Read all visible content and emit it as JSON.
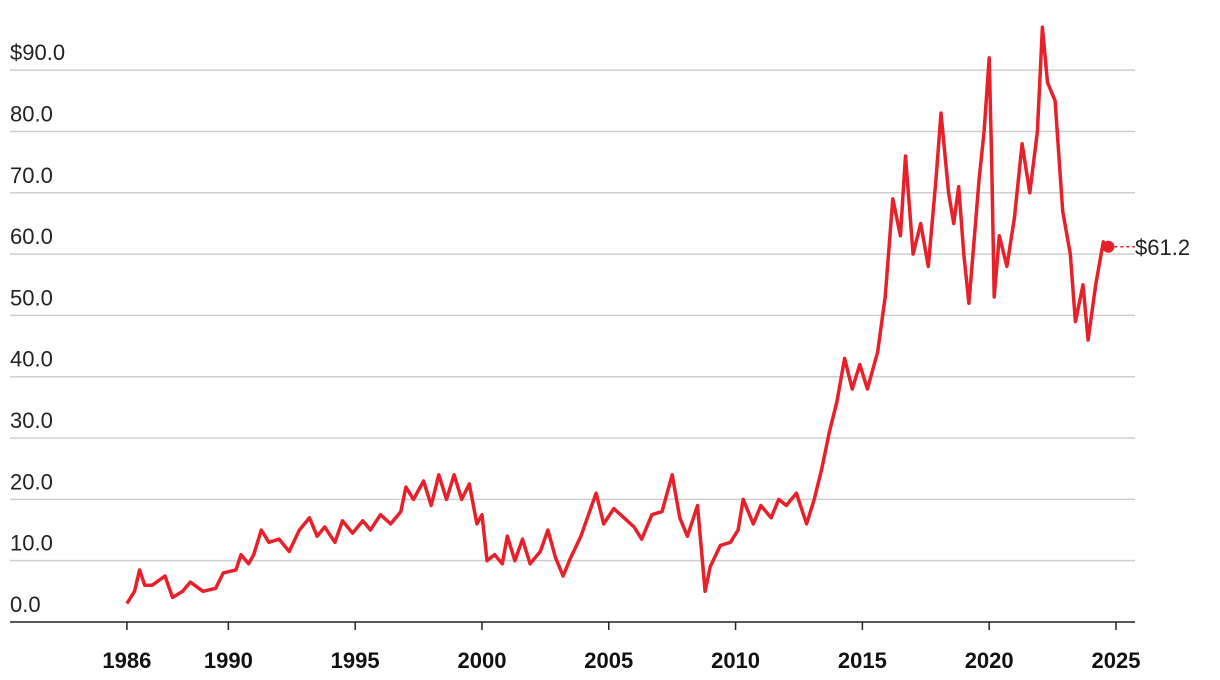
{
  "chart_data": {
    "type": "line",
    "x": [
      1986.0,
      1986.3,
      1986.5,
      1986.7,
      1987.0,
      1987.5,
      1987.8,
      1988.2,
      1988.5,
      1989.0,
      1989.5,
      1989.8,
      1990.3,
      1990.5,
      1990.8,
      1991.0,
      1991.3,
      1991.6,
      1992.0,
      1992.4,
      1992.8,
      1993.2,
      1993.5,
      1993.8,
      1994.2,
      1994.5,
      1994.9,
      1995.3,
      1995.6,
      1996.0,
      1996.4,
      1996.8,
      1997.0,
      1997.3,
      1997.7,
      1998.0,
      1998.3,
      1998.6,
      1998.9,
      1999.2,
      1999.5,
      1999.8,
      2000.0,
      2000.2,
      2000.5,
      2000.8,
      2001.0,
      2001.3,
      2001.6,
      2001.9,
      2002.3,
      2002.6,
      2002.9,
      2003.2,
      2003.5,
      2003.9,
      2004.2,
      2004.5,
      2004.8,
      2005.2,
      2005.6,
      2006.0,
      2006.3,
      2006.7,
      2007.1,
      2007.5,
      2007.8,
      2008.1,
      2008.5,
      2008.8,
      2009.0,
      2009.4,
      2009.8,
      2010.1,
      2010.3,
      2010.7,
      2011.0,
      2011.4,
      2011.7,
      2012.0,
      2012.4,
      2012.8,
      2013.1,
      2013.4,
      2013.7,
      2014.0,
      2014.3,
      2014.6,
      2014.9,
      2015.2,
      2015.6,
      2015.9,
      2016.2,
      2016.5,
      2016.7,
      2017.0,
      2017.3,
      2017.6,
      2017.9,
      2018.1,
      2018.4,
      2018.6,
      2018.8,
      2019.0,
      2019.2,
      2019.4,
      2019.6,
      2019.8,
      2020.0,
      2020.1,
      2020.2,
      2020.4,
      2020.7,
      2021.0,
      2021.3,
      2021.6,
      2021.9,
      2022.1,
      2022.3,
      2022.6,
      2022.9,
      2023.2,
      2023.4,
      2023.7,
      2023.9,
      2024.2,
      2024.5,
      2024.7
    ],
    "series": [
      {
        "color": "#e8202a",
        "values": [
          3,
          5,
          8.5,
          6,
          6,
          7.5,
          4,
          5,
          6.5,
          5,
          5.5,
          8,
          8.5,
          11,
          9.5,
          11,
          15,
          13,
          13.5,
          11.5,
          15,
          17,
          14,
          15.5,
          13,
          16.5,
          14.5,
          16.5,
          15,
          17.5,
          16,
          18,
          22,
          20,
          23,
          19,
          24,
          20,
          24,
          20,
          22.5,
          16,
          17.5,
          10,
          11,
          9.5,
          14,
          10,
          13.5,
          9.5,
          11.5,
          15,
          10.5,
          7.5,
          10.5,
          14,
          17.5,
          21,
          16,
          18.5,
          17,
          15.5,
          13.5,
          17.5,
          18,
          24,
          17,
          14,
          19,
          5,
          9,
          12.5,
          13,
          15,
          20,
          16,
          19,
          17,
          20,
          19,
          21,
          16,
          20,
          25,
          31,
          36,
          43,
          38,
          42,
          38,
          44,
          53,
          69,
          63,
          76,
          60,
          65,
          58,
          72,
          83,
          70,
          65,
          71,
          60,
          52,
          62,
          72,
          80,
          92,
          75,
          53,
          63,
          58,
          66,
          78,
          70,
          80,
          97,
          88,
          85,
          67,
          60,
          49,
          55,
          46,
          55,
          62,
          61.2
        ]
      }
    ],
    "annotation": {
      "x": 2024.7,
      "value": 61.2,
      "label": "$61.2"
    },
    "xlim": [
      1981.39,
      2025.75
    ],
    "xticks": [
      1986,
      1990,
      1995,
      2000,
      2005,
      2010,
      2015,
      2020,
      2025
    ],
    "ylim": [
      0,
      99
    ],
    "yticks": [
      {
        "value": 0,
        "label": "0.0"
      },
      {
        "value": 10,
        "label": "10.0"
      },
      {
        "value": 20,
        "label": "20.0"
      },
      {
        "value": 30,
        "label": "30.0"
      },
      {
        "value": 40,
        "label": "40.0"
      },
      {
        "value": 50,
        "label": "50.0"
      },
      {
        "value": 60,
        "label": "60.0"
      },
      {
        "value": 70,
        "label": "70.0"
      },
      {
        "value": 80,
        "label": "80.0"
      },
      {
        "value": 90,
        "label": "$90.0"
      }
    ],
    "grid": true
  }
}
